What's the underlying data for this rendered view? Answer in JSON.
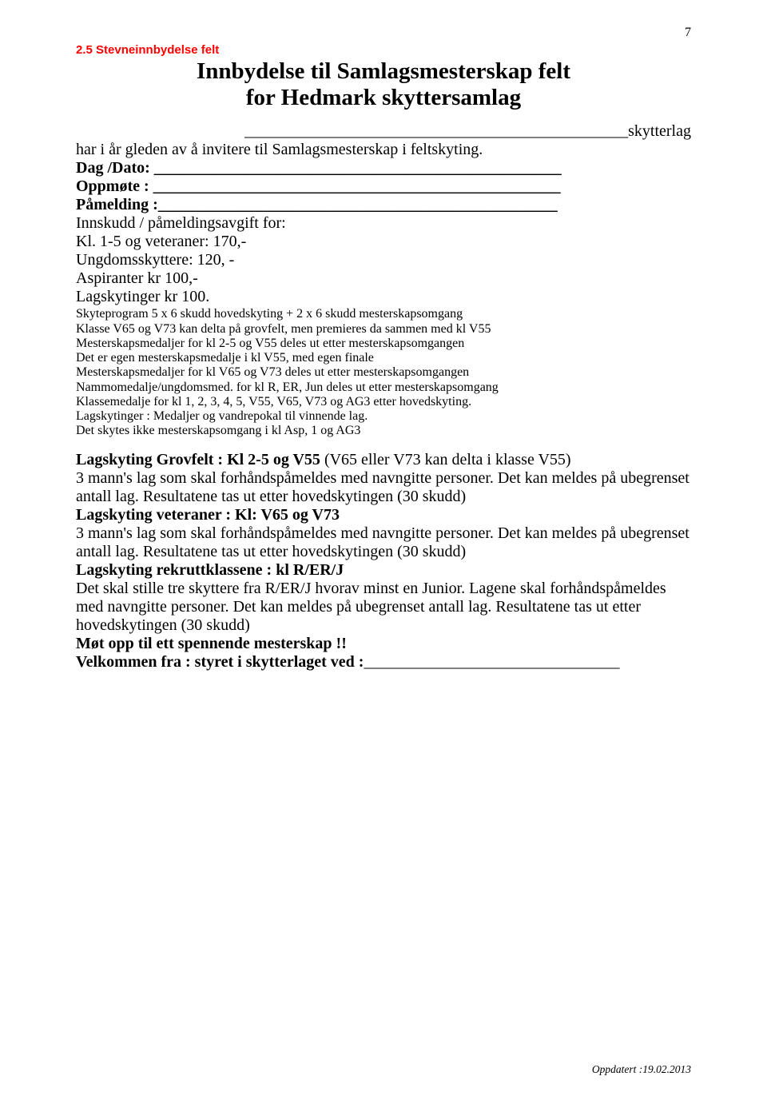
{
  "page_number": "7",
  "section_header": "2.5 Stevneinnbydelse felt",
  "title_line1": "Innbydelse til Samlagsmesterskap felt",
  "title_line2": "for Hedmark skyttersamlag",
  "blank_tail": "________________________________________________skytterlag",
  "intro": "har i år gleden av å invitere til Samlagsmesterskap i feltskyting.",
  "form": {
    "dag": "Dag /Dato: ___________________________________________________",
    "oppmote": "Oppmøte : ___________________________________________________",
    "pamelding": "Påmelding :__________________________________________________"
  },
  "info1": "Innskudd / påmeldingsavgift for:",
  "info2": "Kl. 1-5 og veteraner: 170,-",
  "info3": "Ungdomsskyttere: 120, -",
  "info4": "Aspiranter kr 100,-",
  "info5": "Lagskytinger kr 100.",
  "fine1": "Skyteprogram 5 x 6 skudd hovedskyting + 2 x 6 skudd mesterskapsomgang",
  "fine2": "Klasse V65 og V73 kan delta på grovfelt, men premieres da sammen med kl V55",
  "fine3": "Mesterskapsmedaljer for kl 2-5 og V55 deles ut etter mesterskapsomgangen",
  "fine4": "Det er egen mesterskapsmedalje i kl V55, med egen finale",
  "fine5": "Mesterskapsmedaljer for kl V65 og V73 deles ut etter mesterskapsomgangen",
  "fine6": "Nammomedalje/ungdomsmed. for kl R, ER, Jun deles ut etter mesterskapsomgang",
  "fine7": "Klassemedalje for kl 1, 2, 3, 4, 5, V55, V65, V73 og AG3 etter hovedskyting.",
  "fine8": "Lagskytinger : Medaljer og vandrepokal til vinnende lag.",
  "fine9": "Det skytes ikke mesterskapsomgang i kl Asp, 1 og AG3",
  "b1_bold": "Lagskyting Grovfelt : Kl 2-5 og V55 ",
  "b1_rest": "(V65 eller V73 kan delta i klasse V55)",
  "b2": "3 mann's lag som skal forhåndspåmeldes med navngitte personer. Det kan meldes på ubegrenset antall lag. Resultatene tas ut etter hovedskytingen (30 skudd)",
  "b3_bold": "Lagskyting veteraner : Kl: V65 og V73",
  "b4": "3 mann's lag som skal forhåndspåmeldes med navngitte personer. Det kan meldes på ubegrenset antall lag. Resultatene tas ut etter hovedskytingen (30 skudd)",
  "b5_bold": "Lagskyting rekruttklassene : kl R/ER/J",
  "b6": "Det skal stille tre skyttere fra R/ER/J hvorav minst en Junior. Lagene skal forhåndspåmeldes med navngitte personer. Det kan meldes på ubegrenset antall lag. Resultatene tas ut etter hovedskytingen (30 skudd)",
  "b7_bold": "Møt opp til ett spennende mesterskap !!",
  "b8_bold": "Velkommen fra : styret i skytterlaget ved :",
  "b8_line": "________________________________",
  "footer": "Oppdatert :19.02.2013",
  "colors": {
    "header": "#ff0000",
    "text": "#000000",
    "background": "#ffffff"
  }
}
